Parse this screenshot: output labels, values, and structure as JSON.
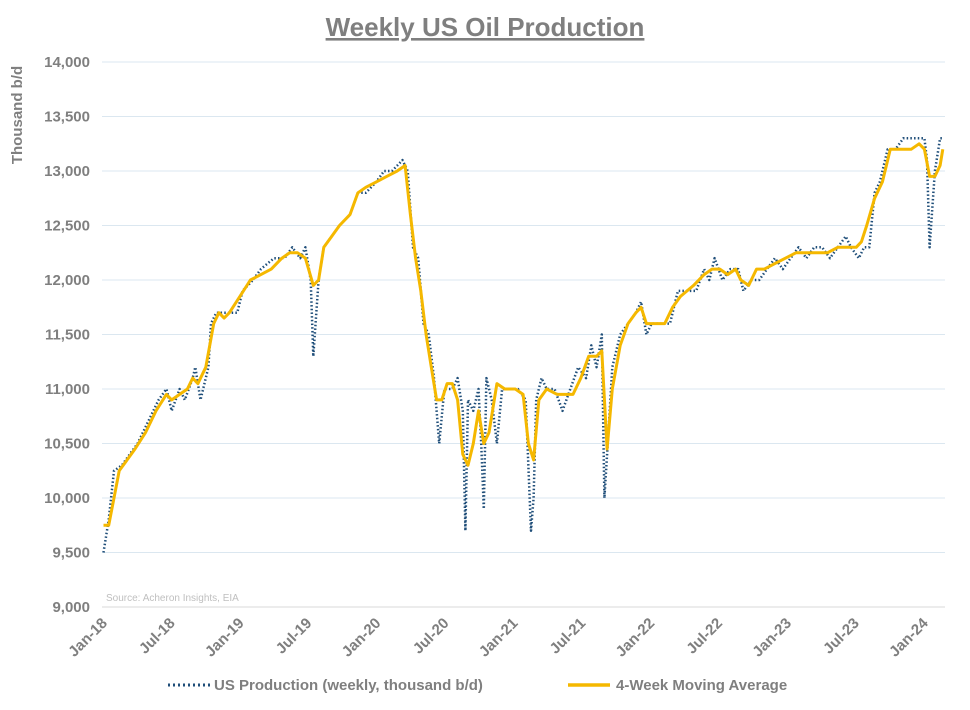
{
  "chart_data": {
    "type": "line",
    "title": "Weekly US Oil Production",
    "ylabel": "Thousand b/d",
    "xlabel": "",
    "source": "Source: Acheron Insights, EIA",
    "ylim": [
      9000,
      14000
    ],
    "yticks": [
      9000,
      9500,
      10000,
      10500,
      11000,
      11500,
      12000,
      12500,
      13000,
      13500,
      14000
    ],
    "ytick_labels": [
      "9,000",
      "9,500",
      "10,000",
      "10,500",
      "11,000",
      "11,500",
      "12,000",
      "12,500",
      "13,000",
      "13,500",
      "14,000"
    ],
    "xlim": [
      "2018-01-01",
      "2024-02-29"
    ],
    "xticks": [
      "2018-01-01",
      "2018-07-01",
      "2019-01-01",
      "2019-07-01",
      "2020-01-01",
      "2020-07-01",
      "2021-01-01",
      "2021-07-01",
      "2022-01-01",
      "2022-07-01",
      "2023-01-01",
      "2023-07-01",
      "2024-01-01"
    ],
    "xtick_labels": [
      "Jan-18",
      "Jul-18",
      "Jan-19",
      "Jul-19",
      "Jan-20",
      "Jul-20",
      "Jan-21",
      "Jul-21",
      "Jan-22",
      "Jul-22",
      "Jan-23",
      "Jul-23",
      "Jan-24"
    ],
    "grid": "horizontal",
    "legend_position": "bottom",
    "series": [
      {
        "name": "US Production (weekly, thousand b/d)",
        "color": "#1f4e79",
        "style": "dotted",
        "points": [
          [
            "2018-01-05",
            9500
          ],
          [
            "2018-01-19",
            9800
          ],
          [
            "2018-02-02",
            10250
          ],
          [
            "2018-02-23",
            10300
          ],
          [
            "2018-03-16",
            10400
          ],
          [
            "2018-04-06",
            10500
          ],
          [
            "2018-05-04",
            10700
          ],
          [
            "2018-06-01",
            10900
          ],
          [
            "2018-06-22",
            11000
          ],
          [
            "2018-07-06",
            10800
          ],
          [
            "2018-07-27",
            11000
          ],
          [
            "2018-08-10",
            10900
          ],
          [
            "2018-08-31",
            11100
          ],
          [
            "2018-09-07",
            11200
          ],
          [
            "2018-09-21",
            10900
          ],
          [
            "2018-10-12",
            11200
          ],
          [
            "2018-10-19",
            11600
          ],
          [
            "2018-11-02",
            11700
          ],
          [
            "2018-11-23",
            11700
          ],
          [
            "2018-12-07",
            11700
          ],
          [
            "2018-12-28",
            11700
          ],
          [
            "2019-01-11",
            11900
          ],
          [
            "2019-02-08",
            12000
          ],
          [
            "2019-03-01",
            12100
          ],
          [
            "2019-04-05",
            12200
          ],
          [
            "2019-05-03",
            12200
          ],
          [
            "2019-05-24",
            12300
          ],
          [
            "2019-06-14",
            12200
          ],
          [
            "2019-06-28",
            12300
          ],
          [
            "2019-07-12",
            12000
          ],
          [
            "2019-07-19",
            11300
          ],
          [
            "2019-08-02",
            12000
          ],
          [
            "2019-08-16",
            12300
          ],
          [
            "2019-09-06",
            12400
          ],
          [
            "2019-09-27",
            12500
          ],
          [
            "2019-10-25",
            12600
          ],
          [
            "2019-11-15",
            12800
          ],
          [
            "2019-12-06",
            12800
          ],
          [
            "2020-01-03",
            12900
          ],
          [
            "2020-01-24",
            13000
          ],
          [
            "2020-02-14",
            13000
          ],
          [
            "2020-03-13",
            13100
          ],
          [
            "2020-03-27",
            13000
          ],
          [
            "2020-04-10",
            12300
          ],
          [
            "2020-04-24",
            12200
          ],
          [
            "2020-05-08",
            11600
          ],
          [
            "2020-05-22",
            11500
          ],
          [
            "2020-06-05",
            11100
          ],
          [
            "2020-06-19",
            10500
          ],
          [
            "2020-07-03",
            11000
          ],
          [
            "2020-07-24",
            11000
          ],
          [
            "2020-08-07",
            11100
          ],
          [
            "2020-08-21",
            10800
          ],
          [
            "2020-08-28",
            9700
          ],
          [
            "2020-09-04",
            10900
          ],
          [
            "2020-09-18",
            10800
          ],
          [
            "2020-10-02",
            11000
          ],
          [
            "2020-10-09",
            10500
          ],
          [
            "2020-10-16",
            9900
          ],
          [
            "2020-10-23",
            11100
          ],
          [
            "2020-11-06",
            10900
          ],
          [
            "2020-11-20",
            10500
          ],
          [
            "2020-12-04",
            11000
          ],
          [
            "2020-12-25",
            11000
          ],
          [
            "2021-01-15",
            11000
          ],
          [
            "2021-02-05",
            10900
          ],
          [
            "2021-02-19",
            9700
          ],
          [
            "2021-02-26",
            10000
          ],
          [
            "2021-03-05",
            10900
          ],
          [
            "2021-03-19",
            11100
          ],
          [
            "2021-04-02",
            11000
          ],
          [
            "2021-04-23",
            11000
          ],
          [
            "2021-05-14",
            10800
          ],
          [
            "2021-06-04",
            11000
          ],
          [
            "2021-06-25",
            11200
          ],
          [
            "2021-07-16",
            11100
          ],
          [
            "2021-07-30",
            11400
          ],
          [
            "2021-08-13",
            11200
          ],
          [
            "2021-08-27",
            11500
          ],
          [
            "2021-09-03",
            10000
          ],
          [
            "2021-09-10",
            10400
          ],
          [
            "2021-09-24",
            11200
          ],
          [
            "2021-10-15",
            11500
          ],
          [
            "2021-11-05",
            11600
          ],
          [
            "2021-11-26",
            11700
          ],
          [
            "2021-12-10",
            11800
          ],
          [
            "2021-12-24",
            11500
          ],
          [
            "2022-01-07",
            11600
          ],
          [
            "2022-02-04",
            11600
          ],
          [
            "2022-02-25",
            11600
          ],
          [
            "2022-03-18",
            11900
          ],
          [
            "2022-04-08",
            11900
          ],
          [
            "2022-05-06",
            11900
          ],
          [
            "2022-05-27",
            12100
          ],
          [
            "2022-06-10",
            12000
          ],
          [
            "2022-06-24",
            12200
          ],
          [
            "2022-07-15",
            12000
          ],
          [
            "2022-08-05",
            12100
          ],
          [
            "2022-08-26",
            12100
          ],
          [
            "2022-09-09",
            11900
          ],
          [
            "2022-09-30",
            12000
          ],
          [
            "2022-10-21",
            12000
          ],
          [
            "2022-11-11",
            12100
          ],
          [
            "2022-12-02",
            12200
          ],
          [
            "2022-12-23",
            12100
          ],
          [
            "2023-01-13",
            12200
          ],
          [
            "2023-02-03",
            12300
          ],
          [
            "2023-02-24",
            12200
          ],
          [
            "2023-03-17",
            12300
          ],
          [
            "2023-04-07",
            12300
          ],
          [
            "2023-04-28",
            12200
          ],
          [
            "2023-05-19",
            12300
          ],
          [
            "2023-06-09",
            12400
          ],
          [
            "2023-06-23",
            12300
          ],
          [
            "2023-07-14",
            12200
          ],
          [
            "2023-07-28",
            12300
          ],
          [
            "2023-08-11",
            12300
          ],
          [
            "2023-08-25",
            12800
          ],
          [
            "2023-09-08",
            12900
          ],
          [
            "2023-09-29",
            13200
          ],
          [
            "2023-10-20",
            13200
          ],
          [
            "2023-11-10",
            13300
          ],
          [
            "2023-12-01",
            13300
          ],
          [
            "2023-12-15",
            13300
          ],
          [
            "2024-01-05",
            13300
          ],
          [
            "2024-01-12",
            13100
          ],
          [
            "2024-01-19",
            12300
          ],
          [
            "2024-02-02",
            13000
          ],
          [
            "2024-02-16",
            13300
          ],
          [
            "2024-02-23",
            13300
          ]
        ]
      },
      {
        "name": "4-Week Moving Average",
        "color": "#f5b800",
        "style": "solid",
        "points": [
          [
            "2018-01-05",
            9750
          ],
          [
            "2018-01-19",
            9750
          ],
          [
            "2018-02-02",
            10000
          ],
          [
            "2018-02-16",
            10250
          ],
          [
            "2018-03-09",
            10350
          ],
          [
            "2018-03-30",
            10450
          ],
          [
            "2018-04-27",
            10600
          ],
          [
            "2018-05-25",
            10800
          ],
          [
            "2018-06-22",
            10950
          ],
          [
            "2018-07-06",
            10900
          ],
          [
            "2018-07-27",
            10950
          ],
          [
            "2018-08-17",
            11000
          ],
          [
            "2018-08-31",
            11100
          ],
          [
            "2018-09-14",
            11050
          ],
          [
            "2018-10-05",
            11200
          ],
          [
            "2018-10-26",
            11600
          ],
          [
            "2018-11-09",
            11700
          ],
          [
            "2018-11-23",
            11650
          ],
          [
            "2018-12-07",
            11700
          ],
          [
            "2019-01-04",
            11850
          ],
          [
            "2019-02-01",
            12000
          ],
          [
            "2019-03-01",
            12050
          ],
          [
            "2019-03-29",
            12100
          ],
          [
            "2019-04-26",
            12200
          ],
          [
            "2019-05-17",
            12250
          ],
          [
            "2019-06-07",
            12250
          ],
          [
            "2019-06-28",
            12200
          ],
          [
            "2019-07-19",
            11950
          ],
          [
            "2019-08-02",
            12000
          ],
          [
            "2019-08-16",
            12300
          ],
          [
            "2019-09-06",
            12400
          ],
          [
            "2019-09-27",
            12500
          ],
          [
            "2019-10-25",
            12600
          ],
          [
            "2019-11-15",
            12800
          ],
          [
            "2019-12-06",
            12850
          ],
          [
            "2020-01-03",
            12900
          ],
          [
            "2020-01-31",
            12950
          ],
          [
            "2020-02-28",
            13000
          ],
          [
            "2020-03-20",
            13050
          ],
          [
            "2020-04-03",
            12600
          ],
          [
            "2020-04-17",
            12200
          ],
          [
            "2020-05-01",
            11900
          ],
          [
            "2020-05-15",
            11500
          ],
          [
            "2020-05-29",
            11200
          ],
          [
            "2020-06-12",
            10900
          ],
          [
            "2020-06-26",
            10900
          ],
          [
            "2020-07-10",
            11050
          ],
          [
            "2020-07-24",
            11050
          ],
          [
            "2020-08-07",
            10900
          ],
          [
            "2020-08-21",
            10400
          ],
          [
            "2020-09-04",
            10300
          ],
          [
            "2020-09-18",
            10500
          ],
          [
            "2020-10-02",
            10800
          ],
          [
            "2020-10-16",
            10500
          ],
          [
            "2020-10-30",
            10600
          ],
          [
            "2020-11-20",
            11050
          ],
          [
            "2020-12-11",
            11000
          ],
          [
            "2021-01-08",
            11000
          ],
          [
            "2021-01-29",
            10950
          ],
          [
            "2021-02-12",
            10500
          ],
          [
            "2021-02-26",
            10350
          ],
          [
            "2021-03-12",
            10900
          ],
          [
            "2021-04-02",
            11000
          ],
          [
            "2021-04-30",
            10950
          ],
          [
            "2021-05-21",
            10950
          ],
          [
            "2021-06-11",
            10950
          ],
          [
            "2021-07-02",
            11100
          ],
          [
            "2021-07-23",
            11300
          ],
          [
            "2021-08-13",
            11300
          ],
          [
            "2021-08-27",
            11350
          ],
          [
            "2021-09-10",
            10450
          ],
          [
            "2021-09-24",
            11000
          ],
          [
            "2021-10-15",
            11400
          ],
          [
            "2021-11-05",
            11600
          ],
          [
            "2021-11-26",
            11700
          ],
          [
            "2021-12-10",
            11750
          ],
          [
            "2021-12-24",
            11600
          ],
          [
            "2022-01-14",
            11600
          ],
          [
            "2022-02-11",
            11600
          ],
          [
            "2022-03-04",
            11750
          ],
          [
            "2022-03-25",
            11850
          ],
          [
            "2022-04-29",
            11950
          ],
          [
            "2022-05-27",
            12050
          ],
          [
            "2022-06-17",
            12100
          ],
          [
            "2022-07-08",
            12100
          ],
          [
            "2022-07-29",
            12050
          ],
          [
            "2022-08-19",
            12100
          ],
          [
            "2022-09-02",
            12000
          ],
          [
            "2022-09-23",
            11950
          ],
          [
            "2022-10-14",
            12100
          ],
          [
            "2022-11-04",
            12100
          ],
          [
            "2022-12-02",
            12150
          ],
          [
            "2022-12-30",
            12200
          ],
          [
            "2023-01-27",
            12250
          ],
          [
            "2023-02-24",
            12250
          ],
          [
            "2023-03-24",
            12250
          ],
          [
            "2023-04-21",
            12250
          ],
          [
            "2023-05-19",
            12300
          ],
          [
            "2023-06-16",
            12300
          ],
          [
            "2023-07-07",
            12300
          ],
          [
            "2023-07-21",
            12350
          ],
          [
            "2023-08-04",
            12500
          ],
          [
            "2023-08-25",
            12750
          ],
          [
            "2023-09-15",
            12900
          ],
          [
            "2023-10-06",
            13200
          ],
          [
            "2023-11-03",
            13200
          ],
          [
            "2023-12-01",
            13200
          ],
          [
            "2023-12-22",
            13250
          ],
          [
            "2024-01-05",
            13200
          ],
          [
            "2024-01-19",
            12950
          ],
          [
            "2024-02-02",
            12950
          ],
          [
            "2024-02-16",
            13050
          ],
          [
            "2024-02-23",
            13200
          ]
        ]
      }
    ]
  }
}
